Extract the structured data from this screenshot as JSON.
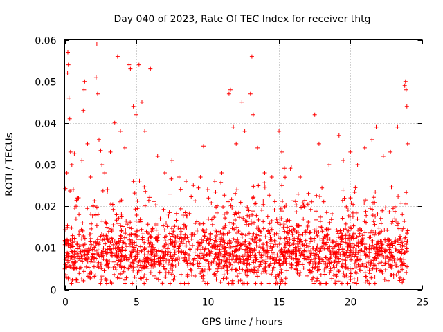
{
  "chart_data": {
    "type": "scatter",
    "title": "Day 040 of 2023, Rate Of TEC Index for receiver thtg",
    "xlabel": "GPS time / hours",
    "ylabel": "ROTI / TECUs",
    "xlim": [
      0,
      25
    ],
    "ylim": [
      0,
      0.06
    ],
    "xticks": [
      0,
      5,
      10,
      15,
      20,
      25
    ],
    "xtick_labels": [
      "0",
      "5",
      "10",
      "15",
      "20",
      "25"
    ],
    "yticks": [
      0,
      0.01,
      0.02,
      0.03,
      0.04,
      0.05,
      0.06
    ],
    "ytick_labels": [
      "0",
      "0.01",
      "0.02",
      "0.03",
      "0.04",
      "0.05",
      "0.06"
    ],
    "grid": true,
    "marker": "plus",
    "color": "#ff0000",
    "series": [
      {
        "name": "ROTI",
        "description_of_density": "dense cloud of ROTI samples from 0 to 24 hours, bulk between 0.003 and 0.02 TECU/s, spikes up to about 0.059",
        "points": [
          [
            0.05,
            0.006
          ],
          [
            0.1,
            0.012
          ],
          [
            0.15,
            0.028
          ],
          [
            0.2,
            0.052
          ],
          [
            0.22,
            0.057
          ],
          [
            0.25,
            0.054
          ],
          [
            0.3,
            0.046
          ],
          [
            0.35,
            0.041
          ],
          [
            0.4,
            0.033
          ],
          [
            0.5,
            0.03
          ],
          [
            0.6,
            0.024
          ],
          [
            0.8,
            0.02
          ],
          [
            1.0,
            0.018
          ],
          [
            1.2,
            0.031
          ],
          [
            1.3,
            0.043
          ],
          [
            1.35,
            0.048
          ],
          [
            1.4,
            0.05
          ],
          [
            1.6,
            0.035
          ],
          [
            1.8,
            0.027
          ],
          [
            2.0,
            0.02
          ],
          [
            2.2,
            0.051
          ],
          [
            2.25,
            0.059
          ],
          [
            2.3,
            0.047
          ],
          [
            2.4,
            0.036
          ],
          [
            2.6,
            0.03
          ],
          [
            2.8,
            0.028
          ],
          [
            3.0,
            0.024
          ],
          [
            3.2,
            0.033
          ],
          [
            3.5,
            0.04
          ],
          [
            3.7,
            0.056
          ],
          [
            3.9,
            0.038
          ],
          [
            4.2,
            0.034
          ],
          [
            4.5,
            0.054
          ],
          [
            4.6,
            0.053
          ],
          [
            4.8,
            0.044
          ],
          [
            5.0,
            0.042
          ],
          [
            5.2,
            0.054
          ],
          [
            5.4,
            0.045
          ],
          [
            5.6,
            0.038
          ],
          [
            6.0,
            0.053
          ],
          [
            6.5,
            0.032
          ],
          [
            7.0,
            0.028
          ],
          [
            7.5,
            0.031
          ],
          [
            8.0,
            0.027
          ],
          [
            8.5,
            0.026
          ],
          [
            9.0,
            0.025
          ],
          [
            9.5,
            0.027
          ],
          [
            10.0,
            0.024
          ],
          [
            10.5,
            0.026
          ],
          [
            11.0,
            0.028
          ],
          [
            11.5,
            0.047
          ],
          [
            11.6,
            0.048
          ],
          [
            11.8,
            0.039
          ],
          [
            12.0,
            0.035
          ],
          [
            12.4,
            0.045
          ],
          [
            12.6,
            0.038
          ],
          [
            13.0,
            0.047
          ],
          [
            13.1,
            0.056
          ],
          [
            13.2,
            0.042
          ],
          [
            13.5,
            0.034
          ],
          [
            14.0,
            0.028
          ],
          [
            14.5,
            0.027
          ],
          [
            15.0,
            0.038
          ],
          [
            15.2,
            0.033
          ],
          [
            15.8,
            0.029
          ],
          [
            16.5,
            0.027
          ],
          [
            17.5,
            0.042
          ],
          [
            17.8,
            0.035
          ],
          [
            18.5,
            0.03
          ],
          [
            19.2,
            0.037
          ],
          [
            19.5,
            0.031
          ],
          [
            20.0,
            0.033
          ],
          [
            20.5,
            0.03
          ],
          [
            21.0,
            0.034
          ],
          [
            21.5,
            0.036
          ],
          [
            21.8,
            0.039
          ],
          [
            22.3,
            0.032
          ],
          [
            22.8,
            0.033
          ],
          [
            23.3,
            0.039
          ],
          [
            23.8,
            0.049
          ],
          [
            23.85,
            0.05
          ],
          [
            23.9,
            0.048
          ],
          [
            23.95,
            0.044
          ],
          [
            24.0,
            0.035
          ]
        ]
      }
    ]
  }
}
